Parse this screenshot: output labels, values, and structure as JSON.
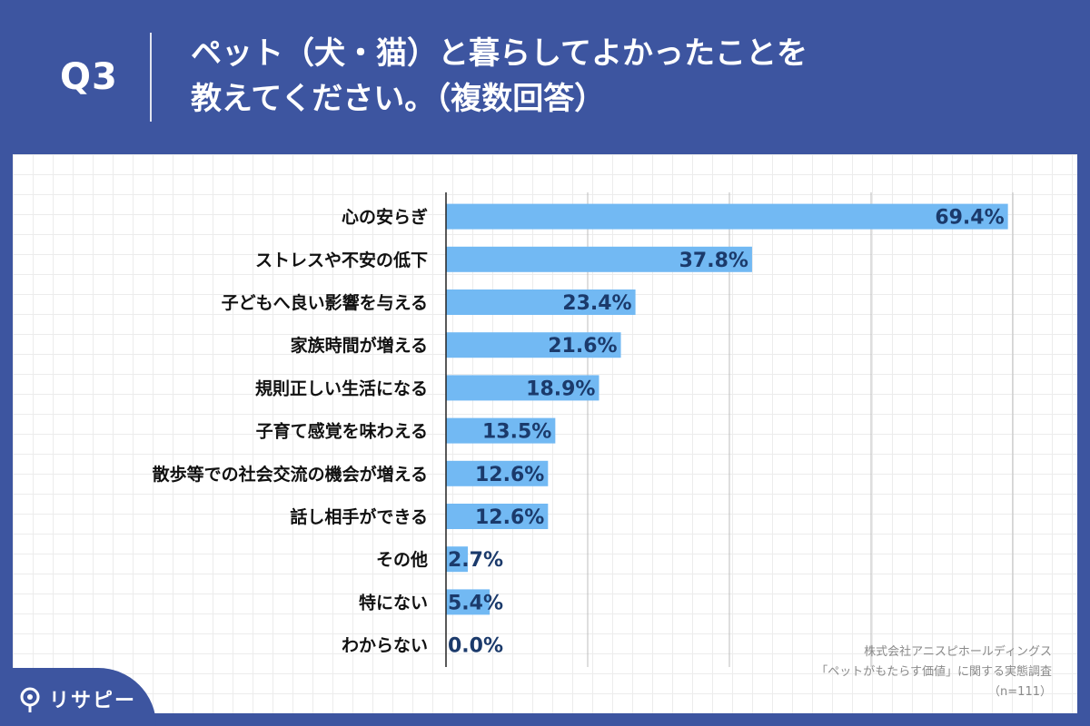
{
  "header": {
    "qnum": "Q3",
    "question_line1": "ペット（犬・猫）と暮らしてよかったことを",
    "question_line2": "教えてください。（複数回答）"
  },
  "chart_data": {
    "type": "bar",
    "orientation": "horizontal",
    "categories": [
      "心の安らぎ",
      "ストレスや不安の低下",
      "子どもへ良い影響を与える",
      "家族時間が増える",
      "規則正しい生活になる",
      "子育て感覚を味わえる",
      "散歩等での社会交流の機会が増える",
      "話し相手ができる",
      "その他",
      "特にない",
      "わからない"
    ],
    "values": [
      69.4,
      37.8,
      23.4,
      21.6,
      18.9,
      13.5,
      12.6,
      12.6,
      2.7,
      5.4,
      0.0
    ],
    "value_labels": [
      "69.4%",
      "37.8%",
      "23.4%",
      "21.6%",
      "18.9%",
      "13.5%",
      "12.6%",
      "12.6%",
      "2.7%",
      "5.4%",
      "0.0%"
    ],
    "xlim": [
      0,
      70
    ],
    "gridlines_at": [
      17.5,
      35,
      52.5,
      70
    ],
    "grid": true,
    "bar_color": "#72b9f3",
    "label_color": "#1b3a6b"
  },
  "source": {
    "line1": "株式会社アニスピホールディングス",
    "line2": "「ペットがもたらす価値」に関する実態調査",
    "line3": "（n=111）"
  },
  "brand": {
    "name": "リサピー",
    "icon": "pin-icon"
  },
  "colors": {
    "background": "#3d55a0",
    "panel": "#ffffff"
  }
}
